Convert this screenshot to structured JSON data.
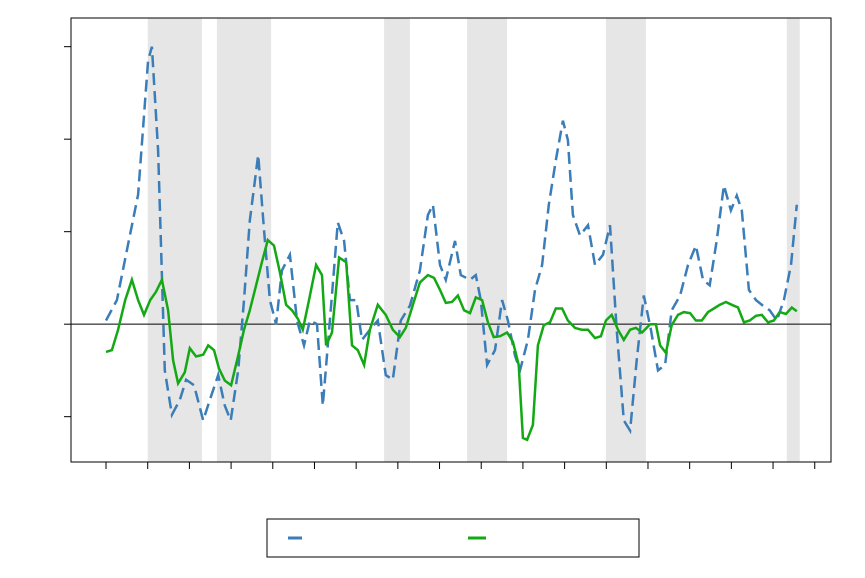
{
  "chart_data": {
    "type": "line",
    "xlim": [
      -0.84,
      17.39
    ],
    "xticks": [
      0,
      1,
      2,
      3,
      4,
      5,
      6,
      7,
      8,
      9,
      10,
      11,
      12,
      13,
      14,
      15,
      16,
      17
    ],
    "ylim": [
      -1.49,
      3.31
    ],
    "yticks": [
      -1,
      0,
      1,
      2,
      3
    ],
    "zero_line": true,
    "shaded_regions": [
      [
        1.0,
        2.3
      ],
      [
        2.66,
        3.96
      ],
      [
        6.67,
        7.29
      ],
      [
        8.66,
        9.62
      ],
      [
        11.99,
        12.95
      ],
      [
        16.33,
        16.64
      ]
    ],
    "shade_color": "#e6e6e6",
    "series": [
      {
        "color": "#3a7db8",
        "dashed": true,
        "x": [
          0,
          0.26,
          0.5,
          0.77,
          1.01,
          1.1,
          1.25,
          1.41,
          1.58,
          1.77,
          1.92,
          2.11,
          2.33,
          2.49,
          2.69,
          2.85,
          2.99,
          3.17,
          3.31,
          3.45,
          3.65,
          3.79,
          3.93,
          4.08,
          4.22,
          4.41,
          4.58,
          4.75,
          4.89,
          5.06,
          5.2,
          5.37,
          5.56,
          5.71,
          5.85,
          6.0,
          6.14,
          6.33,
          6.52,
          6.71,
          6.88,
          7.07,
          7.29,
          7.53,
          7.72,
          7.84,
          8.01,
          8.15,
          8.37,
          8.51,
          8.73,
          8.87,
          8.99,
          9.14,
          9.33,
          9.5,
          9.64,
          9.81,
          9.93,
          10.12,
          10.29,
          10.46,
          10.62,
          10.79,
          10.96,
          11.08,
          11.2,
          11.37,
          11.56,
          11.73,
          11.92,
          12.09,
          12.25,
          12.42,
          12.57,
          12.73,
          12.9,
          13.07,
          13.24,
          13.41,
          13.57,
          13.77,
          13.96,
          14.15,
          14.32,
          14.48,
          14.65,
          14.82,
          14.99,
          15.13,
          15.25,
          15.42,
          15.59,
          15.76,
          15.92,
          16.09,
          16.26,
          16.43,
          16.57
        ],
        "values": [
          0.04,
          0.26,
          0.8,
          1.4,
          2.85,
          3.0,
          1.88,
          -0.5,
          -0.98,
          -0.82,
          -0.6,
          -0.66,
          -1.04,
          -0.82,
          -0.55,
          -0.88,
          -1.04,
          -0.5,
          0.26,
          1.12,
          1.83,
          1.02,
          0.26,
          0,
          0.58,
          0.75,
          0.04,
          -0.23,
          0.04,
          0,
          -0.88,
          0.04,
          1.1,
          0.9,
          0.26,
          0.26,
          -0.17,
          -0.06,
          0.04,
          -0.55,
          -0.6,
          0.04,
          0.2,
          0.58,
          1.18,
          1.29,
          0.64,
          0.48,
          0.9,
          0.53,
          0.48,
          0.53,
          0.26,
          -0.44,
          -0.28,
          0.26,
          0.04,
          -0.34,
          -0.5,
          -0.17,
          0.37,
          0.64,
          1.29,
          1.77,
          2.2,
          1.99,
          1.18,
          0.96,
          1.07,
          0.64,
          0.75,
          1.07,
          -0.06,
          -1.04,
          -1.15,
          -0.39,
          0.31,
          -0.06,
          -0.5,
          -0.44,
          0.15,
          0.31,
          0.64,
          0.85,
          0.48,
          0.42,
          0.91,
          1.5,
          1.23,
          1.39,
          1.23,
          0.37,
          0.26,
          0.2,
          0.15,
          0.04,
          0.26,
          0.64,
          1.29
        ]
      },
      {
        "color": "#14a814",
        "dashed": false,
        "x": [
          0,
          0.14,
          0.29,
          0.46,
          0.62,
          0.77,
          0.91,
          1.06,
          1.2,
          1.34,
          1.49,
          1.61,
          1.73,
          1.89,
          2.01,
          2.16,
          2.33,
          2.45,
          2.59,
          2.71,
          2.85,
          3.0,
          3.17,
          3.31,
          3.45,
          3.6,
          3.74,
          3.88,
          4.03,
          4.17,
          4.32,
          4.46,
          4.6,
          4.72,
          4.87,
          5.04,
          5.18,
          5.28,
          5.42,
          5.59,
          5.76,
          5.9,
          6.04,
          6.19,
          6.33,
          6.52,
          6.71,
          6.88,
          7.05,
          7.19,
          7.36,
          7.53,
          7.72,
          7.87,
          8.01,
          8.15,
          8.3,
          8.44,
          8.59,
          8.73,
          8.87,
          9.02,
          9.16,
          9.3,
          9.45,
          9.62,
          9.76,
          9.9,
          10.0,
          10.1,
          10.24,
          10.36,
          10.5,
          10.65,
          10.79,
          10.94,
          11.08,
          11.25,
          11.41,
          11.56,
          11.73,
          11.87,
          11.99,
          12.13,
          12.28,
          12.42,
          12.57,
          12.71,
          12.86,
          13.05,
          13.19,
          13.29,
          13.43,
          13.57,
          13.72,
          13.86,
          14.01,
          14.15,
          14.29,
          14.44,
          14.58,
          14.72,
          14.87,
          15.01,
          15.16,
          15.3,
          15.44,
          15.59,
          15.73,
          15.88,
          16.02,
          16.16,
          16.31,
          16.45,
          16.57
        ],
        "values": [
          -0.3,
          -0.28,
          -0.06,
          0.26,
          0.48,
          0.26,
          0.1,
          0.26,
          0.35,
          0.48,
          0.15,
          -0.39,
          -0.64,
          -0.52,
          -0.26,
          -0.35,
          -0.33,
          -0.23,
          -0.28,
          -0.48,
          -0.61,
          -0.66,
          -0.34,
          -0.06,
          0.15,
          0.42,
          0.67,
          0.91,
          0.85,
          0.56,
          0.21,
          0.15,
          0.06,
          -0.06,
          0.26,
          0.64,
          0.53,
          -0.23,
          -0.09,
          0.72,
          0.67,
          -0.23,
          -0.28,
          -0.44,
          -0.06,
          0.21,
          0.1,
          -0.06,
          -0.14,
          -0.04,
          0.21,
          0.45,
          0.53,
          0.5,
          0.37,
          0.23,
          0.24,
          0.31,
          0.15,
          0.12,
          0.29,
          0.26,
          0.02,
          -0.14,
          -0.13,
          -0.09,
          -0.19,
          -0.44,
          -1.23,
          -1.25,
          -1.09,
          -0.23,
          -0.01,
          0.02,
          0.17,
          0.17,
          0.04,
          -0.04,
          -0.06,
          -0.06,
          -0.15,
          -0.13,
          0.04,
          0.1,
          -0.06,
          -0.17,
          -0.06,
          -0.04,
          -0.09,
          0,
          0,
          -0.23,
          -0.31,
          -0.01,
          0.1,
          0.13,
          0.12,
          0.04,
          0.04,
          0.13,
          0.17,
          0.21,
          0.24,
          0.21,
          0.18,
          0.02,
          0.04,
          0.09,
          0.1,
          0.02,
          0.04,
          0.13,
          0.11,
          0.18,
          0.14
        ]
      }
    ]
  }
}
